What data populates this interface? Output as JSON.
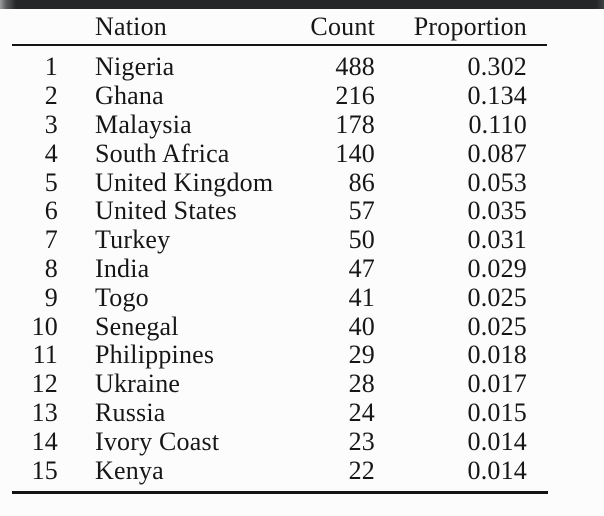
{
  "page": {
    "background_color": "#fcfcfc",
    "text_color": "#161616",
    "rule_color": "#141414",
    "top_bar_color": "#242628"
  },
  "chart_data": {
    "type": "table",
    "columns": [
      "",
      "Nation",
      "Count",
      "Proportion"
    ],
    "rows": [
      [
        "1",
        "Nigeria",
        "488",
        "0.302"
      ],
      [
        "2",
        "Ghana",
        "216",
        "0.134"
      ],
      [
        "3",
        "Malaysia",
        "178",
        "0.110"
      ],
      [
        "4",
        "South Africa",
        "140",
        "0.087"
      ],
      [
        "5",
        "United Kingdom",
        "86",
        "0.053"
      ],
      [
        "6",
        "United States",
        "57",
        "0.035"
      ],
      [
        "7",
        "Turkey",
        "50",
        "0.031"
      ],
      [
        "8",
        "India",
        "47",
        "0.029"
      ],
      [
        "9",
        "Togo",
        "41",
        "0.025"
      ],
      [
        "10",
        "Senegal",
        "40",
        "0.025"
      ],
      [
        "11",
        "Philippines",
        "29",
        "0.018"
      ],
      [
        "12",
        "Ukraine",
        "28",
        "0.017"
      ],
      [
        "13",
        "Russia",
        "24",
        "0.015"
      ],
      [
        "14",
        "Ivory Coast",
        "23",
        "0.014"
      ],
      [
        "15",
        "Kenya",
        "22",
        "0.014"
      ]
    ]
  }
}
